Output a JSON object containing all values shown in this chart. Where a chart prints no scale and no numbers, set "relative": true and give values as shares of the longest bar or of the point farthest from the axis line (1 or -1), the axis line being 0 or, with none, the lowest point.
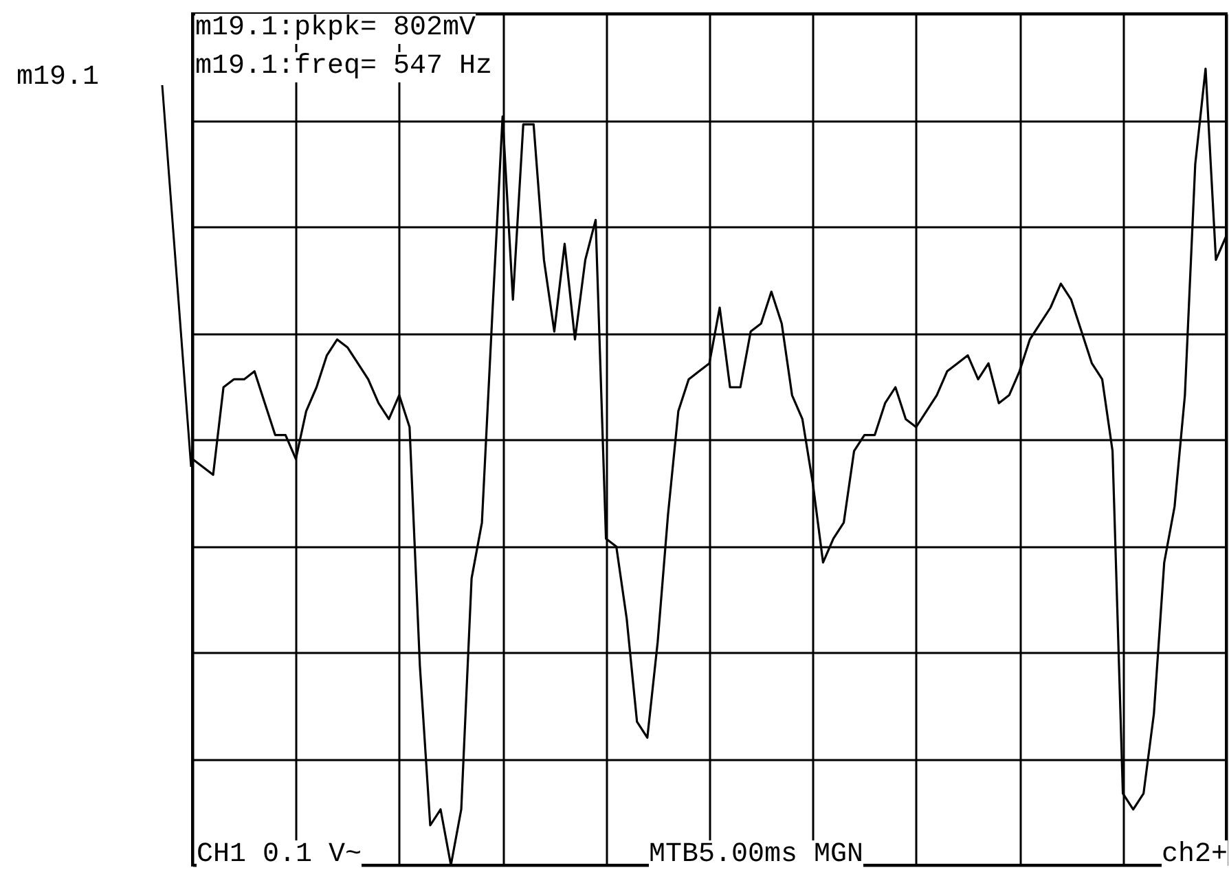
{
  "chart_data": {
    "type": "line",
    "relative": true,
    "grid": true,
    "marker": "none",
    "line_style": "solid",
    "categories": [
      null,
      null,
      null,
      null,
      null,
      null,
      null,
      null,
      null,
      null,
      null,
      null,
      null,
      null,
      null,
      null,
      null,
      null,
      null,
      null,
      null,
      null,
      null,
      null,
      null,
      null,
      null,
      null,
      null,
      null,
      null,
      null,
      null,
      null,
      null,
      null,
      null,
      null,
      null,
      null,
      null,
      null,
      null,
      null,
      null,
      null,
      null,
      null,
      null,
      null,
      null,
      null,
      null,
      null,
      null,
      null,
      null,
      null,
      null,
      null,
      null,
      null,
      null,
      null,
      null,
      null,
      null,
      null,
      null,
      null,
      null,
      null,
      null,
      null,
      null,
      null,
      null,
      null,
      null,
      null,
      null,
      null,
      null,
      null,
      null,
      null,
      null,
      null,
      null,
      null,
      null,
      null,
      null,
      null,
      null,
      null,
      null,
      null,
      null,
      null,
      null
    ],
    "series": [
      {
        "color": "#000000",
        "values": [
          0.51,
          0.5,
          0.49,
          0.6,
          0.61,
          0.61,
          0.62,
          0.58,
          0.54,
          0.54,
          0.51,
          0.57,
          0.6,
          0.64,
          0.66,
          0.65,
          0.63,
          0.61,
          0.58,
          0.56,
          0.59,
          0.55,
          0.25,
          0.05,
          0.07,
          0,
          0.07,
          0.36,
          0.43,
          0.69,
          0.94,
          0.71,
          0.93,
          0.93,
          0.76,
          0.67,
          0.78,
          0.66,
          0.76,
          0.81,
          0.41,
          0.4,
          0.31,
          0.18,
          0.16,
          0.28,
          0.44,
          0.57,
          0.61,
          0.62,
          0.63,
          0.7,
          0.6,
          0.6,
          0.67,
          0.68,
          0.72,
          0.68,
          0.59,
          0.56,
          0.48,
          0.38,
          0.41,
          0.43,
          0.52,
          0.54,
          0.54,
          0.58,
          0.6,
          0.56,
          0.55,
          0.57,
          0.59,
          0.62,
          0.63,
          0.64,
          0.61,
          0.63,
          0.58,
          0.59,
          0.62,
          0.66,
          0.68,
          0.7,
          0.73,
          0.71,
          0.67,
          0.63,
          0.61,
          0.52,
          0.09,
          0.07,
          0.09,
          0.19,
          0.38,
          0.45,
          0.59,
          0.88,
          1,
          0.76,
          0.79
        ]
      }
    ],
    "annotations": [
      "m19.1",
      "m19.1:pkpk= 802mV",
      "m19.1:freq= 547 Hz",
      "CH1 0.1 V~",
      "MTB5.00ms MGN",
      "ch2+"
    ]
  }
}
